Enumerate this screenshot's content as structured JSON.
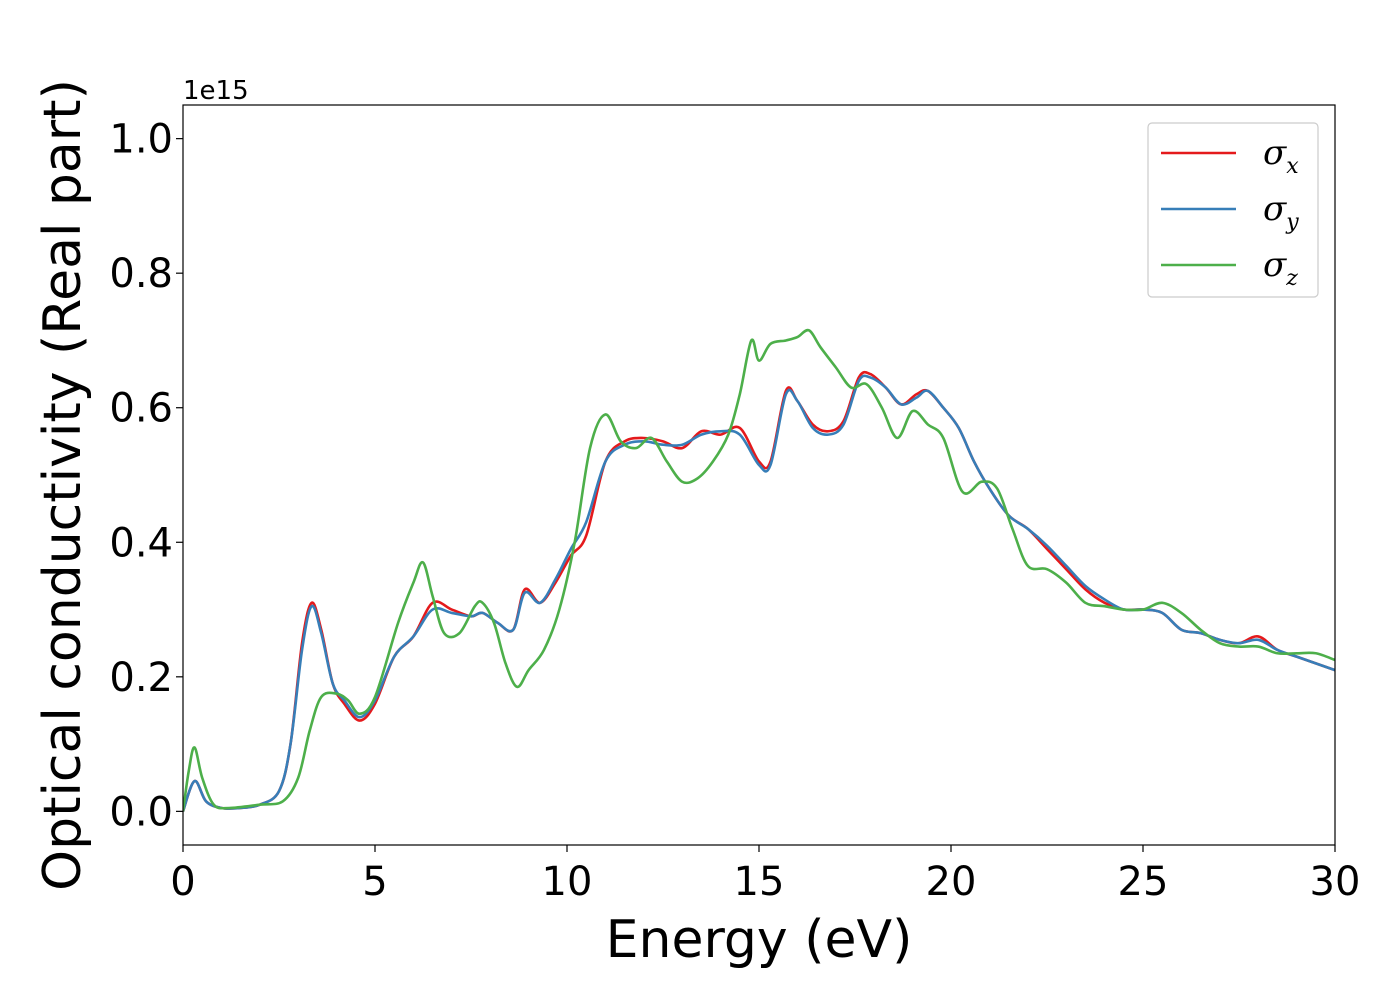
{
  "chart_data": {
    "type": "line",
    "title": "",
    "xlabel": "Energy (eV)",
    "ylabel": "Optical conductivity (Real part)",
    "y_offset_label": "1e15",
    "xlim": [
      0,
      30
    ],
    "ylim": [
      -0.05,
      1.05
    ],
    "x_ticks": [
      0,
      5,
      10,
      15,
      20,
      25,
      30
    ],
    "x_tick_labels": [
      "0",
      "5",
      "10",
      "15",
      "20",
      "25",
      "30"
    ],
    "y_ticks": [
      0.0,
      0.2,
      0.4,
      0.6,
      0.8,
      1.0
    ],
    "y_tick_labels": [
      "0.0",
      "0.2",
      "0.4",
      "0.6",
      "0.8",
      "1.0"
    ],
    "grid": false,
    "legend_position": "top-right",
    "series": [
      {
        "name": "σ",
        "subscript": "x",
        "color": "#e41a1c",
        "x": [
          0,
          0.3,
          0.6,
          1.0,
          1.5,
          2.0,
          2.5,
          2.8,
          3.1,
          3.35,
          3.6,
          3.9,
          4.2,
          4.6,
          5.0,
          5.5,
          6.0,
          6.5,
          7.0,
          7.5,
          7.8,
          8.2,
          8.6,
          8.9,
          9.3,
          9.7,
          10.1,
          10.5,
          11.0,
          11.5,
          12.0,
          12.5,
          13.0,
          13.5,
          14.0,
          14.5,
          15.0,
          15.3,
          15.7,
          16.0,
          16.4,
          16.8,
          17.2,
          17.6,
          17.9,
          18.3,
          18.7,
          19.1,
          19.4,
          19.8,
          20.2,
          20.6,
          21.0,
          21.5,
          22.0,
          22.5,
          23.0,
          23.5,
          24.0,
          24.5,
          25.0,
          25.5,
          26.0,
          26.5,
          27.0,
          27.5,
          28.0,
          28.5,
          29.0,
          29.5,
          30.0
        ],
        "values": [
          0.0,
          0.045,
          0.015,
          0.005,
          0.005,
          0.01,
          0.03,
          0.1,
          0.25,
          0.31,
          0.27,
          0.19,
          0.16,
          0.135,
          0.16,
          0.23,
          0.26,
          0.31,
          0.3,
          0.29,
          0.295,
          0.28,
          0.27,
          0.33,
          0.31,
          0.34,
          0.38,
          0.41,
          0.52,
          0.55,
          0.555,
          0.55,
          0.54,
          0.565,
          0.56,
          0.57,
          0.52,
          0.52,
          0.625,
          0.61,
          0.575,
          0.565,
          0.58,
          0.645,
          0.65,
          0.63,
          0.605,
          0.62,
          0.625,
          0.6,
          0.57,
          0.52,
          0.48,
          0.44,
          0.42,
          0.39,
          0.36,
          0.33,
          0.31,
          0.3,
          0.3,
          0.295,
          0.27,
          0.265,
          0.255,
          0.25,
          0.26,
          0.24,
          0.23,
          0.22,
          0.21
        ]
      },
      {
        "name": "σ",
        "subscript": "y",
        "color": "#377eb8",
        "x": [
          0,
          0.3,
          0.6,
          1.0,
          1.5,
          2.0,
          2.5,
          2.8,
          3.1,
          3.35,
          3.6,
          3.9,
          4.2,
          4.6,
          5.0,
          5.5,
          6.0,
          6.5,
          7.0,
          7.5,
          7.8,
          8.2,
          8.6,
          8.9,
          9.3,
          9.7,
          10.1,
          10.5,
          11.0,
          11.5,
          12.0,
          12.5,
          13.0,
          13.5,
          14.0,
          14.5,
          15.0,
          15.3,
          15.7,
          16.0,
          16.4,
          16.8,
          17.2,
          17.6,
          17.9,
          18.3,
          18.7,
          19.1,
          19.4,
          19.8,
          20.2,
          20.6,
          21.0,
          21.5,
          22.0,
          22.5,
          23.0,
          23.5,
          24.0,
          24.5,
          25.0,
          25.5,
          26.0,
          26.5,
          27.0,
          27.5,
          28.0,
          28.5,
          29.0,
          29.5,
          30.0
        ],
        "values": [
          0.0,
          0.045,
          0.015,
          0.005,
          0.005,
          0.01,
          0.03,
          0.1,
          0.24,
          0.305,
          0.265,
          0.19,
          0.165,
          0.14,
          0.165,
          0.23,
          0.26,
          0.3,
          0.295,
          0.29,
          0.295,
          0.28,
          0.27,
          0.325,
          0.31,
          0.345,
          0.39,
          0.43,
          0.52,
          0.545,
          0.55,
          0.545,
          0.545,
          0.56,
          0.565,
          0.56,
          0.515,
          0.515,
          0.62,
          0.61,
          0.57,
          0.56,
          0.575,
          0.64,
          0.645,
          0.63,
          0.605,
          0.615,
          0.625,
          0.6,
          0.57,
          0.52,
          0.48,
          0.44,
          0.42,
          0.395,
          0.365,
          0.335,
          0.315,
          0.3,
          0.3,
          0.295,
          0.27,
          0.265,
          0.255,
          0.25,
          0.255,
          0.24,
          0.23,
          0.22,
          0.21
        ]
      },
      {
        "name": "σ",
        "subscript": "z",
        "color": "#4daf4a",
        "x": [
          0,
          0.15,
          0.3,
          0.5,
          0.8,
          1.2,
          2.0,
          2.6,
          3.0,
          3.3,
          3.6,
          4.0,
          4.3,
          4.6,
          5.0,
          5.6,
          6.0,
          6.25,
          6.5,
          6.8,
          7.2,
          7.6,
          7.8,
          8.1,
          8.4,
          8.7,
          9.0,
          9.4,
          9.8,
          10.2,
          10.6,
          11.0,
          11.4,
          11.8,
          12.2,
          12.6,
          13.0,
          13.4,
          13.8,
          14.2,
          14.5,
          14.8,
          15.0,
          15.3,
          15.7,
          16.0,
          16.3,
          16.6,
          17.0,
          17.4,
          17.8,
          18.2,
          18.6,
          19.0,
          19.4,
          19.8,
          20.3,
          20.8,
          21.2,
          21.6,
          22.0,
          22.5,
          23.0,
          23.5,
          24.0,
          24.5,
          25.0,
          25.5,
          26.0,
          26.5,
          27.0,
          27.5,
          28.0,
          28.5,
          29.0,
          29.5,
          30.0
        ],
        "values": [
          0.0,
          0.06,
          0.095,
          0.05,
          0.01,
          0.005,
          0.01,
          0.015,
          0.05,
          0.12,
          0.17,
          0.175,
          0.165,
          0.145,
          0.17,
          0.28,
          0.34,
          0.37,
          0.32,
          0.265,
          0.265,
          0.305,
          0.31,
          0.28,
          0.22,
          0.185,
          0.21,
          0.24,
          0.3,
          0.4,
          0.54,
          0.59,
          0.55,
          0.54,
          0.555,
          0.52,
          0.49,
          0.495,
          0.52,
          0.56,
          0.62,
          0.7,
          0.67,
          0.695,
          0.7,
          0.705,
          0.715,
          0.69,
          0.66,
          0.63,
          0.635,
          0.6,
          0.555,
          0.595,
          0.575,
          0.555,
          0.475,
          0.49,
          0.48,
          0.42,
          0.365,
          0.36,
          0.34,
          0.31,
          0.305,
          0.3,
          0.3,
          0.31,
          0.295,
          0.27,
          0.25,
          0.245,
          0.245,
          0.235,
          0.235,
          0.235,
          0.225
        ]
      }
    ]
  }
}
